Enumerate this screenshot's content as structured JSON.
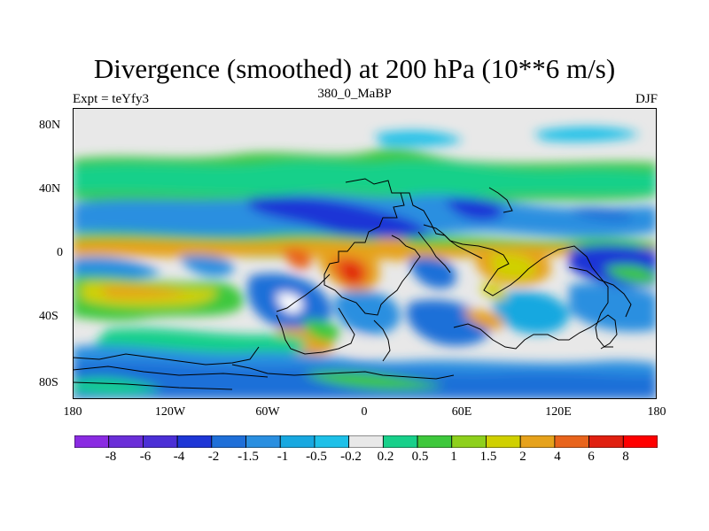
{
  "title": "Divergence (smoothed) at 200 hPa (10**6 m/s)",
  "subtitle_left": "Expt = teYfy3",
  "subtitle_center": "380_0_MaBP",
  "subtitle_right": "DJF",
  "lat_labels": [
    "80N",
    "40N",
    "0",
    "40S",
    "80S"
  ],
  "lon_labels": [
    "180",
    "120W",
    "60W",
    "0",
    "60E",
    "120E",
    "180"
  ],
  "colorbar": {
    "labels": [
      "-8",
      "-6",
      "-4",
      "-2",
      "-1.5",
      "-1",
      "-0.5",
      "-0.2",
      "0.2",
      "0.5",
      "1",
      "1.5",
      "2",
      "4",
      "6",
      "8"
    ],
    "colors": [
      "#8a2be2",
      "#6a2ed8",
      "#4b2fd6",
      "#1e36d6",
      "#1f6fd8",
      "#2a8fe0",
      "#18a8e0",
      "#1ec0e8",
      "#e8e8e8",
      "#18d08a",
      "#3ec83c",
      "#8ed01c",
      "#d0d000",
      "#e6a21c",
      "#e8641c",
      "#e02010",
      "#ff0000"
    ]
  }
}
